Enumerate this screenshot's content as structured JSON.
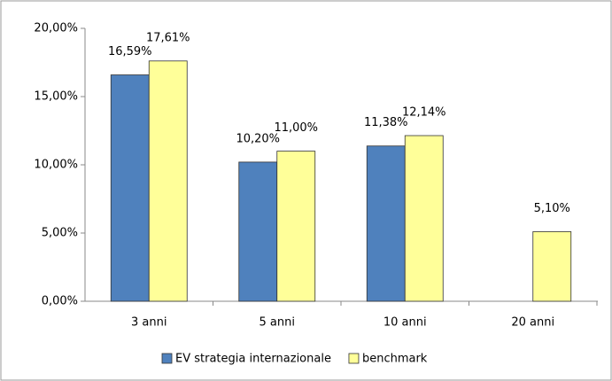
{
  "chart_data": {
    "type": "bar",
    "categories": [
      "3 anni",
      "5 anni",
      "10 anni",
      "20 anni"
    ],
    "series": [
      {
        "name": "EV strategia internazionale",
        "color": "#4f81bd",
        "values": [
          16.59,
          10.2,
          11.38,
          null
        ],
        "value_labels": [
          "16,59%",
          "10,20%",
          "11,38%",
          null
        ]
      },
      {
        "name": "benchmark",
        "color": "#ffff99",
        "values": [
          17.61,
          11.0,
          12.14,
          5.1
        ],
        "value_labels": [
          "17,61%",
          "11,00%",
          "12,14%",
          "5,10%"
        ]
      }
    ],
    "ylim": [
      0,
      20
    ],
    "yticks": [
      {
        "value": 0,
        "label": "0,00%"
      },
      {
        "value": 5,
        "label": "5,00%"
      },
      {
        "value": 10,
        "label": "10,00%"
      },
      {
        "value": 15,
        "label": "15,00%"
      },
      {
        "value": 20,
        "label": "20,00%"
      }
    ],
    "grid": false,
    "legend": "bottom"
  }
}
